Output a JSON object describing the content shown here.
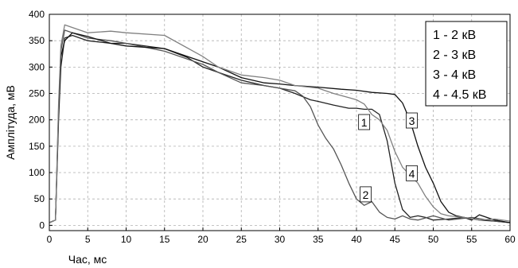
{
  "chart_data": {
    "type": "line",
    "title": "",
    "xlabel": "Час, мс",
    "ylabel": "Амплітуда, мВ",
    "xlim": [
      0,
      60
    ],
    "ylim": [
      -10,
      400
    ],
    "xticks": [
      0,
      5,
      10,
      15,
      20,
      25,
      30,
      35,
      40,
      45,
      50,
      55,
      60
    ],
    "yticks": [
      0,
      50,
      100,
      150,
      200,
      250,
      300,
      350,
      400
    ],
    "grid": true,
    "legend_position": "top-right",
    "legend": [
      "1 - 2 кВ",
      "2 - 3 кВ",
      "3 - 4 кВ",
      "4 - 4.5 кВ"
    ],
    "series": [
      {
        "name": "1 - 2 кВ",
        "color": "#222222",
        "x": [
          0,
          0.8,
          1.2,
          1.5,
          2,
          3,
          4,
          5,
          8,
          10,
          15,
          18,
          20,
          22,
          25,
          28,
          30,
          32,
          34,
          35,
          37,
          38,
          39,
          40,
          41,
          42,
          43,
          44,
          45,
          46,
          47,
          48,
          49,
          50,
          52,
          54,
          56,
          58,
          60
        ],
        "y": [
          5,
          10,
          200,
          300,
          355,
          360,
          355,
          350,
          345,
          345,
          335,
          318,
          300,
          290,
          275,
          265,
          260,
          250,
          238,
          235,
          228,
          225,
          222,
          222,
          220,
          220,
          210,
          160,
          80,
          30,
          15,
          18,
          15,
          10,
          12,
          15,
          10,
          8,
          5
        ]
      },
      {
        "name": "2 - 3 кВ",
        "color": "#555555",
        "x": [
          0,
          0.8,
          1.2,
          1.5,
          2,
          3,
          5,
          8,
          10,
          15,
          20,
          22,
          25,
          28,
          30,
          32,
          33,
          34,
          35,
          36,
          37,
          38,
          39,
          40,
          41,
          42,
          43,
          44,
          45,
          46,
          47,
          48,
          50,
          52,
          55,
          58,
          60
        ],
        "y": [
          5,
          10,
          220,
          330,
          370,
          365,
          355,
          350,
          345,
          330,
          305,
          290,
          270,
          265,
          260,
          255,
          245,
          225,
          190,
          165,
          145,
          115,
          80,
          50,
          38,
          45,
          25,
          15,
          12,
          18,
          12,
          10,
          18,
          10,
          15,
          8,
          5
        ]
      },
      {
        "name": "3 - 4 кВ",
        "color": "#111111",
        "x": [
          0,
          0.8,
          1.2,
          1.5,
          2,
          3,
          5,
          8,
          10,
          15,
          20,
          22,
          25,
          28,
          30,
          32,
          35,
          38,
          40,
          42,
          44,
          45,
          46,
          47,
          48,
          49,
          50,
          51,
          52,
          53,
          54,
          55,
          56,
          58,
          60
        ],
        "y": [
          5,
          10,
          210,
          320,
          350,
          365,
          358,
          345,
          340,
          335,
          310,
          300,
          280,
          270,
          268,
          265,
          262,
          258,
          256,
          252,
          250,
          248,
          232,
          198,
          150,
          110,
          80,
          45,
          25,
          18,
          15,
          10,
          20,
          10,
          5
        ]
      },
      {
        "name": "4 - 4.5 кВ",
        "color": "#808080",
        "x": [
          0,
          0.8,
          1.2,
          1.5,
          2,
          3,
          5,
          8,
          10,
          15,
          20,
          22,
          25,
          28,
          30,
          32,
          35,
          37,
          39,
          40,
          41,
          42,
          43,
          44,
          45,
          46,
          47,
          48,
          49,
          50,
          51,
          52,
          54,
          56,
          58,
          60
        ],
        "y": [
          5,
          10,
          230,
          340,
          380,
          375,
          365,
          368,
          365,
          360,
          320,
          300,
          285,
          280,
          275,
          265,
          260,
          250,
          242,
          238,
          230,
          210,
          200,
          180,
          140,
          110,
          95,
          80,
          55,
          35,
          22,
          18,
          15,
          10,
          12,
          8
        ]
      }
    ],
    "annotations": [
      {
        "text": "1",
        "x": 41,
        "y": 195
      },
      {
        "text": "2",
        "x": 41.2,
        "y": 58
      },
      {
        "text": "3",
        "x": 47.2,
        "y": 198
      },
      {
        "text": "4",
        "x": 47.2,
        "y": 98
      }
    ]
  }
}
